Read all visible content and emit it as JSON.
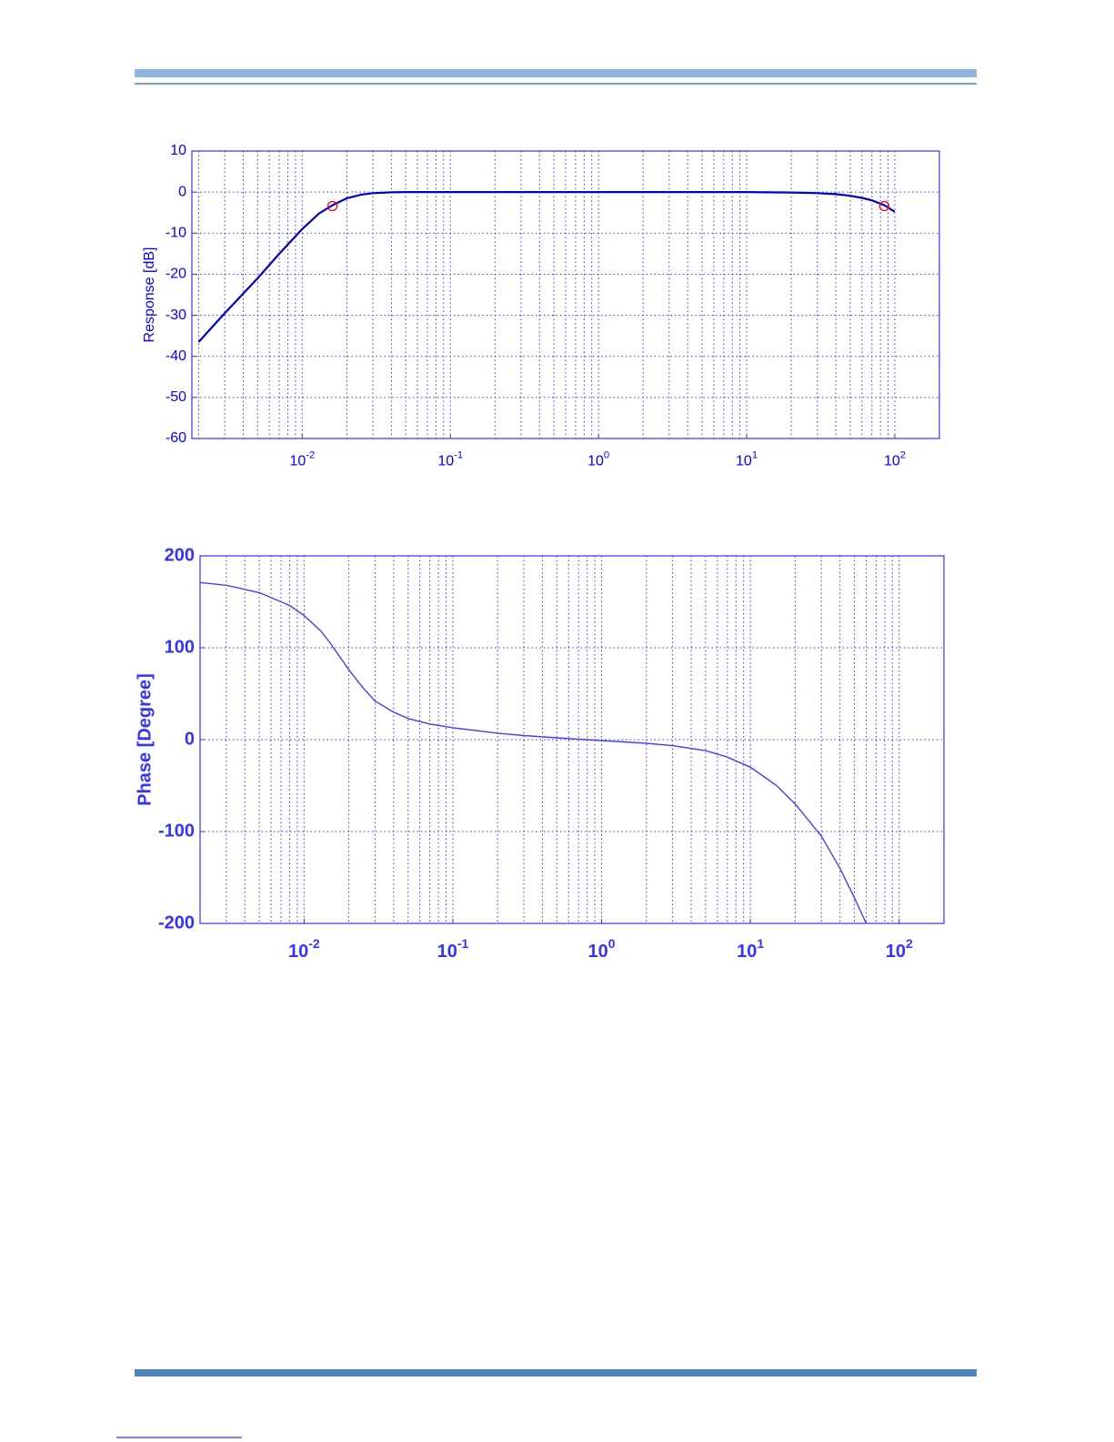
{
  "chart_data": [
    {
      "type": "line",
      "y_label": "Response  [dB]",
      "color": "#0000c8",
      "x_scale": "log",
      "grid": true,
      "x": [
        0.002,
        0.003,
        0.005,
        0.007,
        0.01,
        0.013,
        0.016,
        0.02,
        0.025,
        0.03,
        0.04,
        0.05,
        0.1,
        1,
        10,
        20,
        30,
        40,
        50,
        60,
        70,
        85,
        100
      ],
      "values": [
        -36.5,
        -29.5,
        -21,
        -15,
        -9,
        -5.2,
        -3.2,
        -1.5,
        -0.6,
        -0.25,
        -0.05,
        0,
        0,
        0,
        0,
        -0.1,
        -0.25,
        -0.5,
        -0.9,
        -1.4,
        -2,
        -3.2,
        -4.8
      ],
      "markers": {
        "color": "#ff0000",
        "x": [
          0.016,
          85
        ],
        "values": [
          -3.4,
          -3.4
        ]
      },
      "xlim": [
        0.0018,
        200
      ],
      "ylim": [
        -60,
        10
      ],
      "xticks": [
        {
          "value": 0.01,
          "label": "10^-2"
        },
        {
          "value": 0.1,
          "label": "10^-1"
        },
        {
          "value": 1,
          "label": "10^0"
        },
        {
          "value": 10,
          "label": "10^1"
        },
        {
          "value": 100,
          "label": "10^2"
        }
      ],
      "yticks": [
        -60,
        -50,
        -40,
        -30,
        -20,
        -10,
        0,
        10
      ]
    },
    {
      "type": "line",
      "y_label": "Phase [Degree]",
      "color": "#4040ff",
      "x_scale": "log",
      "grid": true,
      "x": [
        0.002,
        0.003,
        0.005,
        0.008,
        0.01,
        0.013,
        0.015,
        0.02,
        0.025,
        0.03,
        0.04,
        0.05,
        0.07,
        0.1,
        0.2,
        0.3,
        0.5,
        1,
        2,
        3,
        5,
        7,
        10,
        15,
        20,
        30,
        40,
        50,
        60
      ],
      "values": [
        171,
        168,
        160,
        146,
        135,
        118,
        105,
        76,
        56,
        42,
        30,
        23,
        17,
        13,
        7,
        4.5,
        2,
        -1,
        -4,
        -6.5,
        -12,
        -19,
        -30,
        -50,
        -70,
        -105,
        -140,
        -172,
        -200
      ],
      "xlim": [
        0.002,
        200
      ],
      "ylim": [
        -200,
        200
      ],
      "xticks": [
        {
          "value": 0.01,
          "label": "10^-2"
        },
        {
          "value": 0.1,
          "label": "10^-1"
        },
        {
          "value": 1,
          "label": "10^0"
        },
        {
          "value": 10,
          "label": "10^1"
        },
        {
          "value": 100,
          "label": "10^2"
        }
      ],
      "yticks": [
        -200,
        -100,
        0,
        100,
        200
      ]
    }
  ]
}
